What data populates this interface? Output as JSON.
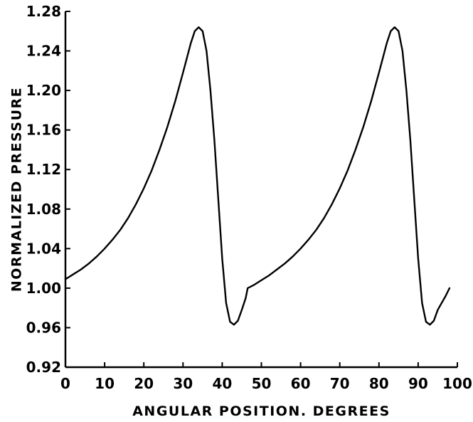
{
  "chart_data": {
    "type": "line",
    "title": "",
    "xlabel": "ANGULAR POSITION. DEGREES",
    "ylabel": "NORMALIZED PRESSURE",
    "xlim": [
      0,
      100
    ],
    "ylim": [
      0.92,
      1.28
    ],
    "x_ticks": [
      0,
      10,
      20,
      30,
      40,
      50,
      60,
      70,
      80,
      90,
      100
    ],
    "y_ticks": [
      "0.92",
      "0.96",
      "1.00",
      "1.04",
      "1.08",
      "1.12",
      "1.16",
      "1.20",
      "1.24",
      "1.28"
    ],
    "grid": false,
    "line_color": "#000000",
    "series": [
      {
        "x": [
          0,
          2,
          4,
          6,
          8,
          10,
          12,
          14,
          16,
          18,
          20,
          22,
          24,
          26,
          28,
          30,
          31,
          32,
          33,
          34,
          35,
          36,
          37,
          38,
          39,
          40,
          41,
          42,
          43,
          44,
          45,
          46,
          46.5,
          48,
          50,
          52,
          54,
          56,
          58,
          60,
          62,
          64,
          66,
          68,
          70,
          72,
          74,
          76,
          78,
          80,
          81,
          82,
          83,
          84,
          85,
          86,
          87,
          88,
          89,
          90,
          91,
          92,
          93,
          94,
          95,
          96,
          97,
          98
        ],
        "y": [
          1.009,
          1.014,
          1.019,
          1.025,
          1.032,
          1.04,
          1.049,
          1.059,
          1.071,
          1.085,
          1.101,
          1.119,
          1.14,
          1.163,
          1.189,
          1.218,
          1.233,
          1.248,
          1.26,
          1.264,
          1.26,
          1.24,
          1.2,
          1.15,
          1.09,
          1.03,
          0.985,
          0.966,
          0.963,
          0.967,
          0.978,
          0.99,
          1.0,
          1.003,
          1.008,
          1.013,
          1.019,
          1.025,
          1.032,
          1.04,
          1.049,
          1.059,
          1.071,
          1.085,
          1.101,
          1.119,
          1.14,
          1.163,
          1.189,
          1.218,
          1.233,
          1.248,
          1.26,
          1.264,
          1.26,
          1.24,
          1.2,
          1.15,
          1.09,
          1.03,
          0.985,
          0.966,
          0.963,
          0.967,
          0.978,
          0.985,
          0.992,
          1.0
        ]
      }
    ]
  }
}
